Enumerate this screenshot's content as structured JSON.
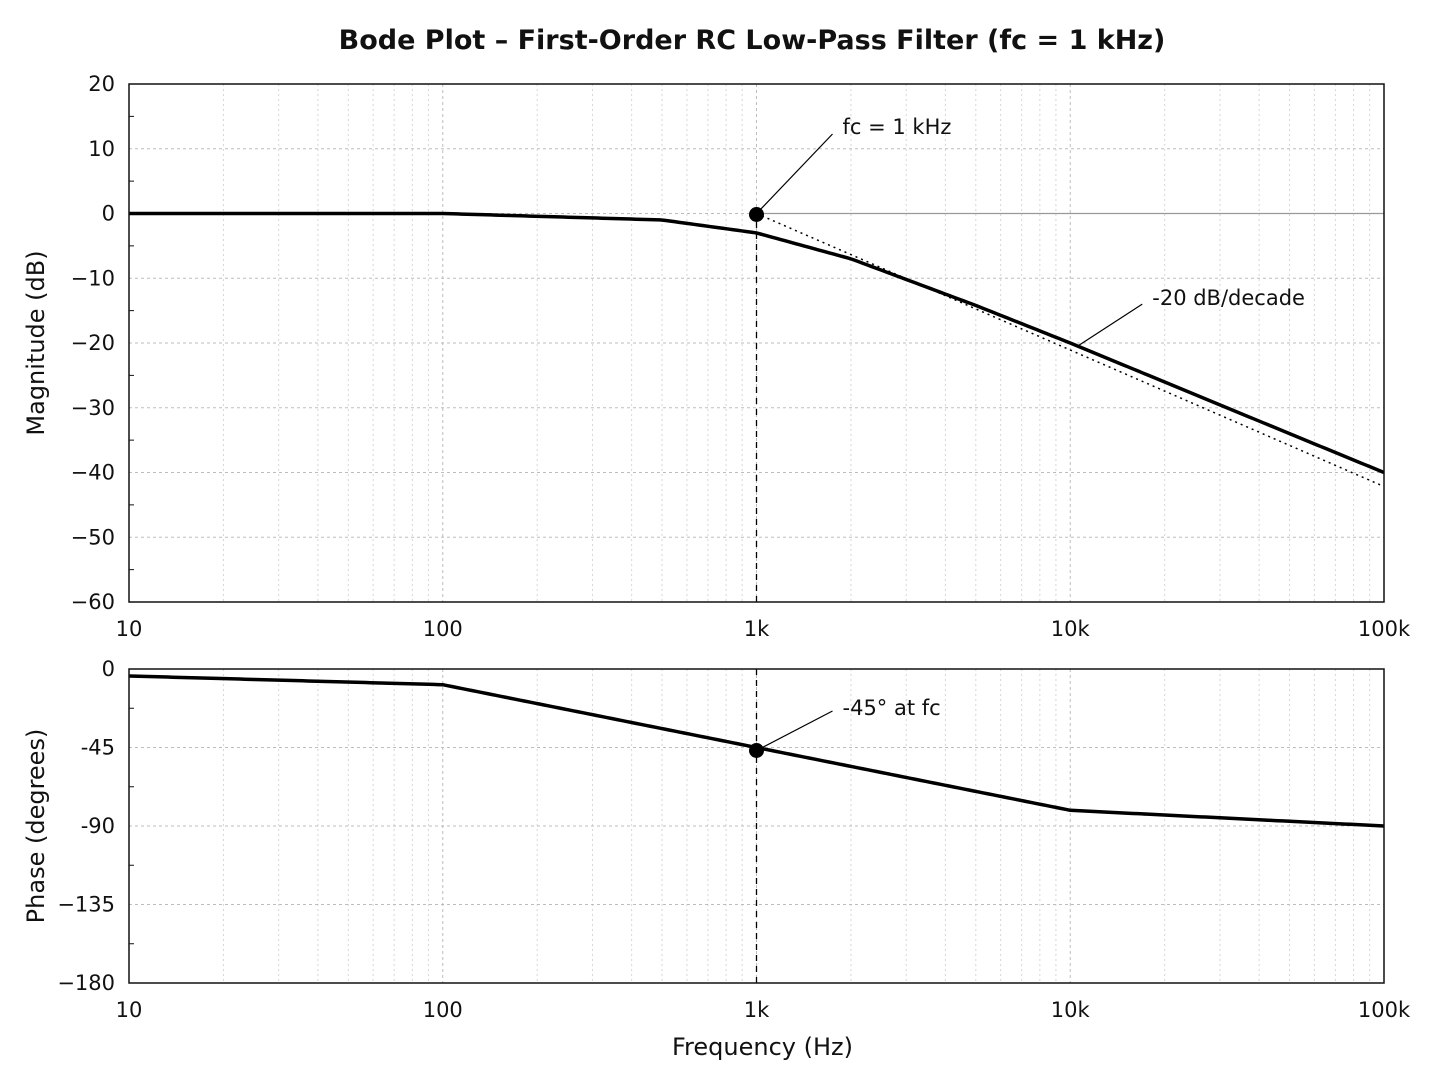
{
  "chart_data": [
    {
      "type": "line",
      "title": "Bode Plot – First-Order RC Low-Pass Filter (fc = 1 kHz)",
      "xlabel": "",
      "ylabel": "Magnitude (dB)",
      "xscale": "log",
      "xlim": [
        10,
        100000
      ],
      "ylim": [
        -60,
        20
      ],
      "x_ticks": [
        10,
        100,
        1000,
        10000,
        100000
      ],
      "x_tick_labels": [
        "10",
        "100",
        "1k",
        "10k",
        "100k"
      ],
      "y_ticks": [
        20,
        10,
        0,
        -10,
        -20,
        -30,
        -40,
        -50,
        -60
      ],
      "y_tick_labels": [
        "20",
        "10",
        "0",
        "−10",
        "−20",
        "−30",
        "−40",
        "−50",
        "−60"
      ],
      "grid": true,
      "cutoff_hz": 1000,
      "series": [
        {
          "style": "solid",
          "x": [
            10,
            100,
            500,
            1000,
            2000,
            5000,
            10000,
            50000,
            100000
          ],
          "values": [
            0,
            0,
            -1,
            -3,
            -7,
            -14.2,
            -20,
            -34,
            -40
          ]
        },
        {
          "style": "dotted",
          "x": [
            1000,
            100000
          ],
          "values": [
            0,
            -40
          ]
        }
      ],
      "annotations": [
        {
          "label": "fc = 1 kHz",
          "x": 1000,
          "y": 0
        },
        {
          "label": "-20 dB/decade",
          "x": 10000,
          "y": -22
        }
      ]
    },
    {
      "type": "line",
      "title": "",
      "xlabel": "Frequency (Hz)",
      "ylabel": "Phase (degrees)",
      "xscale": "log",
      "xlim": [
        10,
        100000
      ],
      "ylim": [
        -180,
        0
      ],
      "x_ticks": [
        10,
        100,
        1000,
        10000,
        100000
      ],
      "x_tick_labels": [
        "10",
        "100",
        "1k",
        "10k",
        "100k"
      ],
      "y_ticks": [
        0,
        -45,
        -90,
        -135,
        -180
      ],
      "y_tick_labels": [
        "0",
        "-45",
        "-90",
        "−135",
        "−180"
      ],
      "grid": true,
      "series": [
        {
          "style": "solid",
          "x": [
            10,
            100,
            1000,
            10000,
            100000
          ],
          "values": [
            -4,
            -9,
            -45,
            -81,
            -90
          ]
        }
      ],
      "annotations": [
        {
          "label": "-45° at fc",
          "x": 1000,
          "y": -45
        }
      ]
    }
  ]
}
